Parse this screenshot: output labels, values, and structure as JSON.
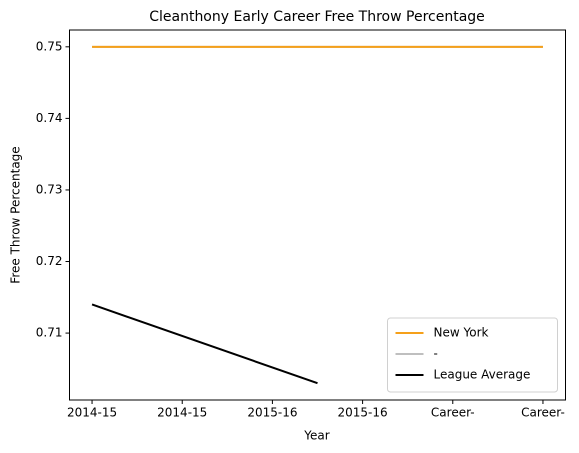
{
  "chart_data": {
    "type": "line",
    "title": "Cleanthony Early Career Free Throw Percentage",
    "x_label": "Year",
    "y_label": "Free Throw Percentage",
    "series": [
      {
        "name": "-",
        "color": "#bfbfbf",
        "x": [
          0,
          1,
          2,
          3,
          4,
          5
        ],
        "values": [
          0.75,
          0.75,
          0.75,
          0.75,
          0.75,
          0.75
        ]
      },
      {
        "name": "New York",
        "color": "#f5a01a",
        "x": [
          0,
          1,
          2,
          3,
          4,
          5
        ],
        "values": [
          0.75,
          0.75,
          0.75,
          0.75,
          0.75,
          0.75
        ]
      },
      {
        "name": "League Average",
        "color": "#000000",
        "x": [
          0,
          2.5
        ],
        "values": [
          0.714,
          0.703
        ]
      }
    ],
    "legend_order": [
      "New York",
      "-",
      "League Average"
    ],
    "legend": "lower right",
    "xlim": [
      -0.25,
      5.25
    ],
    "xticks": [
      {
        "value": 0,
        "label": "2014-15"
      },
      {
        "value": 1,
        "label": "2014-15"
      },
      {
        "value": 2,
        "label": "2015-16"
      },
      {
        "value": 3,
        "label": "2015-16"
      },
      {
        "value": 4,
        "label": "Career-"
      },
      {
        "value": 5,
        "label": "Career-"
      }
    ],
    "ylim": [
      0.70065,
      0.75235
    ],
    "yticks": [
      0.71,
      0.72,
      0.73,
      0.74,
      0.75
    ],
    "grid": false
  }
}
